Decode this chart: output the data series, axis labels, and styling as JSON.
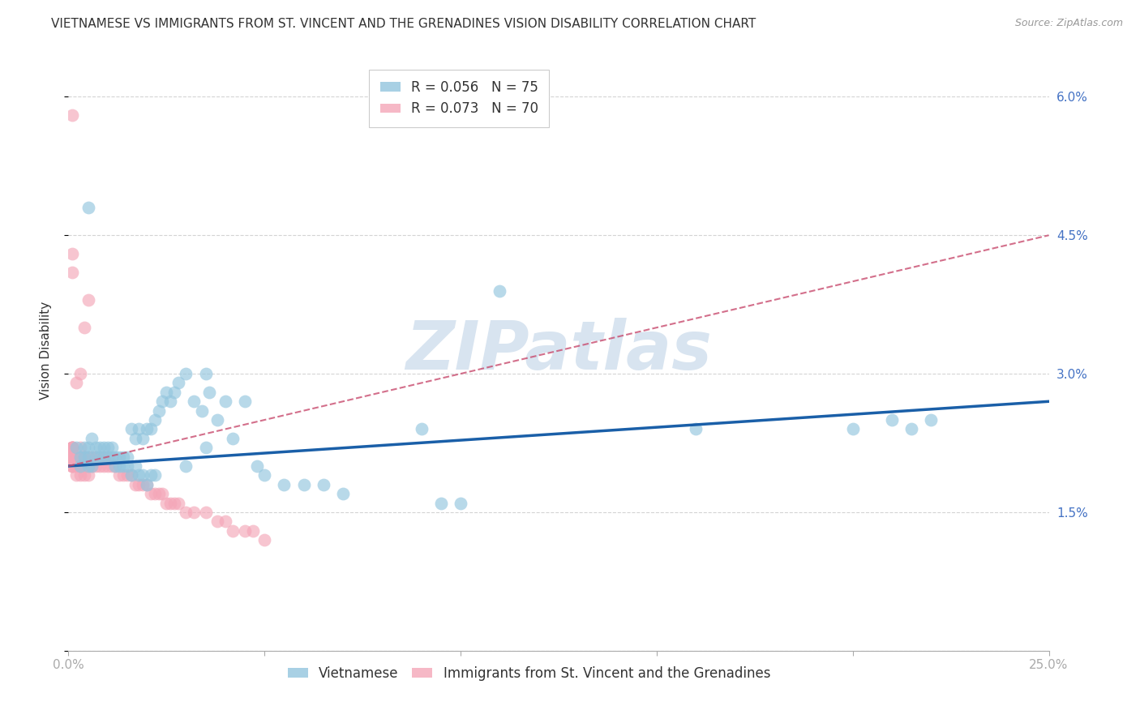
{
  "title": "VIETNAMESE VS IMMIGRANTS FROM ST. VINCENT AND THE GRENADINES VISION DISABILITY CORRELATION CHART",
  "source": "Source: ZipAtlas.com",
  "ylabel": "Vision Disability",
  "xlim": [
    0.0,
    0.25
  ],
  "ylim": [
    0.0,
    0.065
  ],
  "ytick_positions": [
    0.0,
    0.015,
    0.03,
    0.045,
    0.06
  ],
  "ytick_labels": [
    "",
    "1.5%",
    "3.0%",
    "4.5%",
    "6.0%"
  ],
  "xtick_positions": [
    0.0,
    0.05,
    0.1,
    0.15,
    0.2,
    0.25
  ],
  "xtick_labels": [
    "0.0%",
    "",
    "",
    "",
    "",
    "25.0%"
  ],
  "legend1_label": "R = 0.056   N = 75",
  "legend2_label": "R = 0.073   N = 70",
  "blue_color": "#92c5de",
  "pink_color": "#f4a6b8",
  "trend_blue_color": "#1a5fa8",
  "trend_pink_color": "#c84b6e",
  "tick_color": "#4472c4",
  "grid_color": "#d0d0d0",
  "background_color": "#ffffff",
  "watermark_text": "ZIPatlas",
  "watermark_color": "#d8e4f0",
  "title_fontsize": 11,
  "tick_fontsize": 11,
  "legend_fontsize": 12,
  "ylabel_fontsize": 11,
  "blue_x": [
    0.002,
    0.003,
    0.003,
    0.004,
    0.004,
    0.005,
    0.005,
    0.005,
    0.006,
    0.006,
    0.007,
    0.007,
    0.008,
    0.008,
    0.009,
    0.009,
    0.01,
    0.01,
    0.011,
    0.011,
    0.012,
    0.012,
    0.013,
    0.013,
    0.014,
    0.014,
    0.015,
    0.015,
    0.016,
    0.016,
    0.017,
    0.017,
    0.018,
    0.018,
    0.019,
    0.019,
    0.02,
    0.02,
    0.021,
    0.021,
    0.022,
    0.022,
    0.023,
    0.024,
    0.025,
    0.026,
    0.027,
    0.028,
    0.03,
    0.03,
    0.032,
    0.034,
    0.035,
    0.035,
    0.036,
    0.038,
    0.04,
    0.042,
    0.045,
    0.048,
    0.05,
    0.055,
    0.06,
    0.065,
    0.07,
    0.09,
    0.095,
    0.1,
    0.16,
    0.2,
    0.21,
    0.215,
    0.22,
    0.005,
    0.11
  ],
  "blue_y": [
    0.022,
    0.021,
    0.02,
    0.022,
    0.021,
    0.022,
    0.021,
    0.02,
    0.023,
    0.02,
    0.022,
    0.021,
    0.022,
    0.021,
    0.022,
    0.021,
    0.022,
    0.021,
    0.022,
    0.021,
    0.021,
    0.02,
    0.021,
    0.02,
    0.021,
    0.02,
    0.021,
    0.02,
    0.024,
    0.019,
    0.023,
    0.02,
    0.024,
    0.019,
    0.023,
    0.019,
    0.024,
    0.018,
    0.024,
    0.019,
    0.025,
    0.019,
    0.026,
    0.027,
    0.028,
    0.027,
    0.028,
    0.029,
    0.03,
    0.02,
    0.027,
    0.026,
    0.03,
    0.022,
    0.028,
    0.025,
    0.027,
    0.023,
    0.027,
    0.02,
    0.019,
    0.018,
    0.018,
    0.018,
    0.017,
    0.024,
    0.016,
    0.016,
    0.024,
    0.024,
    0.025,
    0.024,
    0.025,
    0.048,
    0.039
  ],
  "pink_x": [
    0.001,
    0.001,
    0.001,
    0.001,
    0.001,
    0.001,
    0.001,
    0.001,
    0.001,
    0.001,
    0.001,
    0.001,
    0.002,
    0.002,
    0.002,
    0.002,
    0.003,
    0.003,
    0.003,
    0.003,
    0.004,
    0.004,
    0.004,
    0.005,
    0.005,
    0.005,
    0.006,
    0.006,
    0.007,
    0.007,
    0.008,
    0.008,
    0.009,
    0.009,
    0.01,
    0.01,
    0.011,
    0.012,
    0.013,
    0.014,
    0.015,
    0.016,
    0.017,
    0.018,
    0.019,
    0.02,
    0.021,
    0.022,
    0.023,
    0.024,
    0.025,
    0.026,
    0.027,
    0.028,
    0.03,
    0.032,
    0.035,
    0.038,
    0.04,
    0.042,
    0.045,
    0.047,
    0.05,
    0.002,
    0.003,
    0.004,
    0.005,
    0.001,
    0.001,
    0.001
  ],
  "pink_y": [
    0.022,
    0.021,
    0.022,
    0.021,
    0.02,
    0.022,
    0.021,
    0.02,
    0.022,
    0.021,
    0.022,
    0.02,
    0.021,
    0.02,
    0.021,
    0.019,
    0.022,
    0.021,
    0.02,
    0.019,
    0.021,
    0.02,
    0.019,
    0.021,
    0.02,
    0.019,
    0.021,
    0.02,
    0.021,
    0.02,
    0.021,
    0.02,
    0.021,
    0.02,
    0.021,
    0.02,
    0.02,
    0.02,
    0.019,
    0.019,
    0.019,
    0.019,
    0.018,
    0.018,
    0.018,
    0.018,
    0.017,
    0.017,
    0.017,
    0.017,
    0.016,
    0.016,
    0.016,
    0.016,
    0.015,
    0.015,
    0.015,
    0.014,
    0.014,
    0.013,
    0.013,
    0.013,
    0.012,
    0.029,
    0.03,
    0.035,
    0.038,
    0.043,
    0.041,
    0.058
  ],
  "blue_trend_x": [
    0.0,
    0.25
  ],
  "blue_trend_y": [
    0.02,
    0.027
  ],
  "pink_trend_x": [
    0.0,
    0.25
  ],
  "pink_trend_y": [
    0.02,
    0.045
  ]
}
